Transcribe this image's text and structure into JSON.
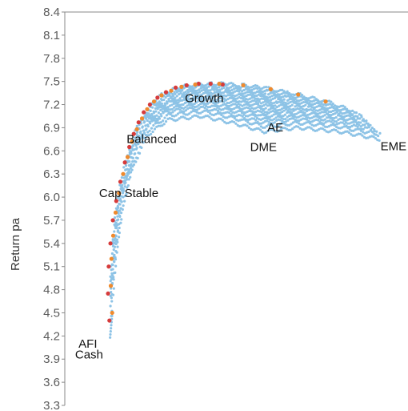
{
  "chart_data": {
    "type": "scatter",
    "title": "",
    "xlabel": "",
    "ylabel": "Return pa",
    "ylim": [
      3.3,
      8.4
    ],
    "y_ticks": [
      "8.4",
      "8.1",
      "7.8",
      "7.5",
      "7.2",
      "6.9",
      "6.6",
      "6.3",
      "6.0",
      "5.7",
      "5.4",
      "5.1",
      "4.8",
      "4.5",
      "4.2",
      "3.9",
      "3.6",
      "3.3"
    ],
    "x_axis": {
      "ticks_shown": false,
      "range": [
        0,
        100
      ]
    },
    "grid": false,
    "colors": {
      "cloud": "#8dc3e6",
      "frontier_red": "#d63b3b",
      "frontier_orange": "#ef8a2e",
      "axis": "#888888"
    },
    "annotations": [
      {
        "text": "AFI",
        "x": 4,
        "y": 4.05
      },
      {
        "text": "Cash",
        "x": 3,
        "y": 3.91
      },
      {
        "text": "Cap Stable",
        "x": 10,
        "y": 6.0
      },
      {
        "text": "Balanced",
        "x": 18,
        "y": 6.7
      },
      {
        "text": "Growth",
        "x": 35,
        "y": 7.23
      },
      {
        "text": "AE",
        "x": 59,
        "y": 6.85
      },
      {
        "text": "DME",
        "x": 54,
        "y": 6.6
      },
      {
        "text": "EME",
        "x": 92,
        "y": 6.61
      }
    ],
    "series": [
      {
        "role": "frontier_red",
        "x": [
          13,
          12.6,
          12.8,
          13.3,
          14,
          15,
          16.2,
          17.5,
          18.8,
          20.1,
          21.5,
          23,
          24.8,
          27,
          29.5,
          32.3,
          35.5,
          39,
          42.5,
          46
        ],
        "y": [
          4.4,
          4.75,
          5.1,
          5.4,
          5.7,
          5.95,
          6.2,
          6.45,
          6.65,
          6.82,
          6.97,
          7.1,
          7.2,
          7.29,
          7.36,
          7.42,
          7.45,
          7.47,
          7.47,
          7.46
        ]
      },
      {
        "role": "frontier_orange",
        "x": [
          13.8,
          13.4,
          13.6,
          14.1,
          14.8,
          15.8,
          17,
          18.3,
          19.6,
          21,
          22.5,
          24,
          26,
          28.2,
          31,
          34,
          38,
          45,
          52,
          60,
          68,
          76
        ],
        "y": [
          4.5,
          4.85,
          5.2,
          5.5,
          5.8,
          6.05,
          6.3,
          6.52,
          6.72,
          6.88,
          7.02,
          7.14,
          7.24,
          7.32,
          7.38,
          7.43,
          7.46,
          7.47,
          7.45,
          7.4,
          7.33,
          7.24
        ]
      }
    ],
    "cloud_outline": [
      [
        13,
        4.2
      ],
      [
        15,
        5.2
      ],
      [
        17,
        5.9
      ],
      [
        20,
        6.4
      ],
      [
        24,
        6.8
      ],
      [
        30,
        7.0
      ],
      [
        40,
        7.05
      ],
      [
        50,
        6.95
      ],
      [
        58,
        6.85
      ],
      [
        68,
        6.9
      ],
      [
        80,
        6.85
      ],
      [
        92,
        6.75
      ]
    ]
  }
}
